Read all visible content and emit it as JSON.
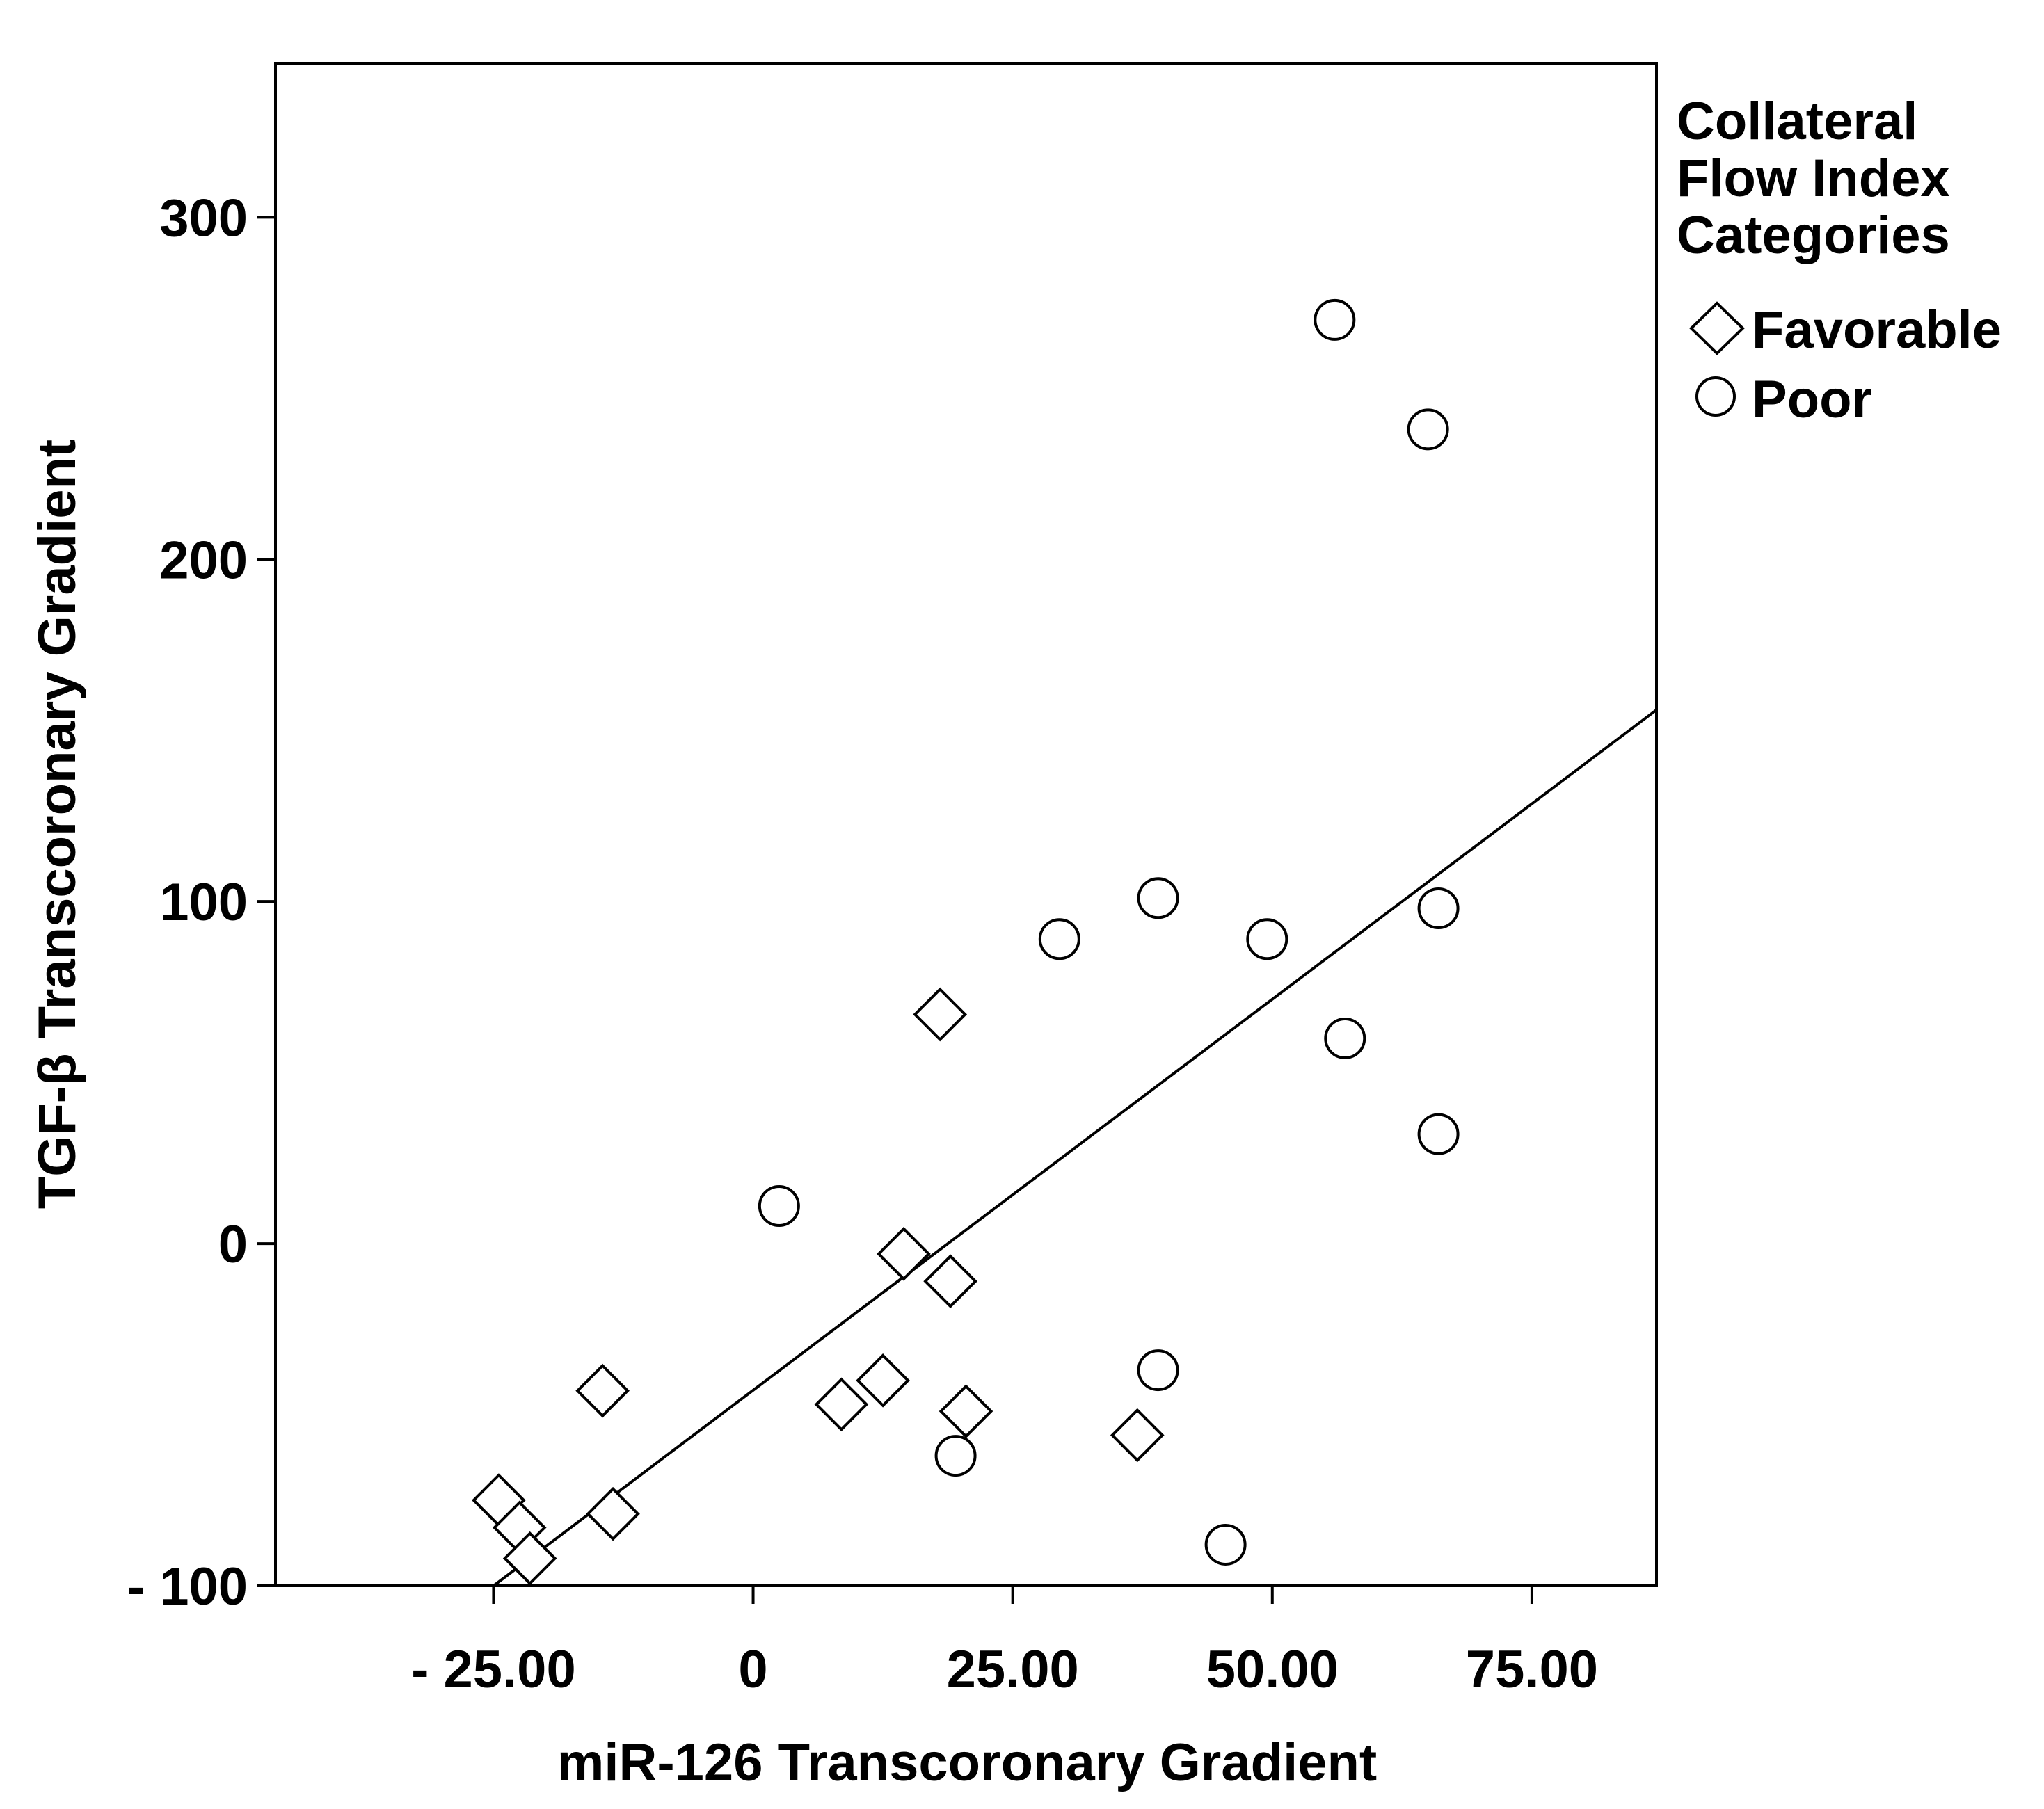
{
  "chart_data": {
    "type": "scatter",
    "title": "",
    "xlabel": "miR-126 Transcoronary Gradient",
    "ylabel": "TGF-β Transcoronary Gradient",
    "xlim": [
      -46,
      87
    ],
    "ylim": [
      -100,
      345
    ],
    "x_ticks": [
      {
        "value": -25,
        "label": "- 25.00"
      },
      {
        "value": 0,
        "label": "0"
      },
      {
        "value": 25,
        "label": "25.00"
      },
      {
        "value": 50,
        "label": "50.00"
      },
      {
        "value": 75,
        "label": "75.00"
      }
    ],
    "y_ticks": [
      {
        "value": -100,
        "label": "- 100"
      },
      {
        "value": 0,
        "label": "0"
      },
      {
        "value": 100,
        "label": "100"
      },
      {
        "value": 200,
        "label": "200"
      },
      {
        "value": 300,
        "label": "300"
      }
    ],
    "grid": false,
    "legend": {
      "title": [
        "Collateral",
        "Flow Index",
        "Categories"
      ],
      "placement": "top-right outside plot",
      "entries": [
        {
          "label": "Favorable",
          "marker": "diamond"
        },
        {
          "label": "Poor",
          "marker": "circle"
        }
      ]
    },
    "series": [
      {
        "name": "Favorable",
        "marker": "diamond",
        "points": [
          [
            -24.5,
            -75
          ],
          [
            -22.5,
            -83
          ],
          [
            -21.5,
            -92
          ],
          [
            -14.5,
            -43
          ],
          [
            -13.5,
            -79
          ],
          [
            8.5,
            -47
          ],
          [
            12.5,
            -40
          ],
          [
            14.5,
            -3
          ],
          [
            18,
            67
          ],
          [
            19,
            -11
          ],
          [
            20.5,
            -49
          ],
          [
            37,
            -56
          ]
        ]
      },
      {
        "name": "Poor",
        "marker": "circle",
        "points": [
          [
            2.5,
            11
          ],
          [
            19.5,
            -62
          ],
          [
            29.5,
            89
          ],
          [
            39,
            101
          ],
          [
            39,
            -37
          ],
          [
            45.5,
            -88
          ],
          [
            49.5,
            89
          ],
          [
            56,
            270
          ],
          [
            57,
            60
          ],
          [
            65,
            238
          ],
          [
            66,
            98
          ],
          [
            66,
            32
          ]
        ]
      }
    ],
    "fit_line": {
      "x": [
        -25,
        87
      ],
      "y": [
        -100,
        156
      ]
    }
  }
}
